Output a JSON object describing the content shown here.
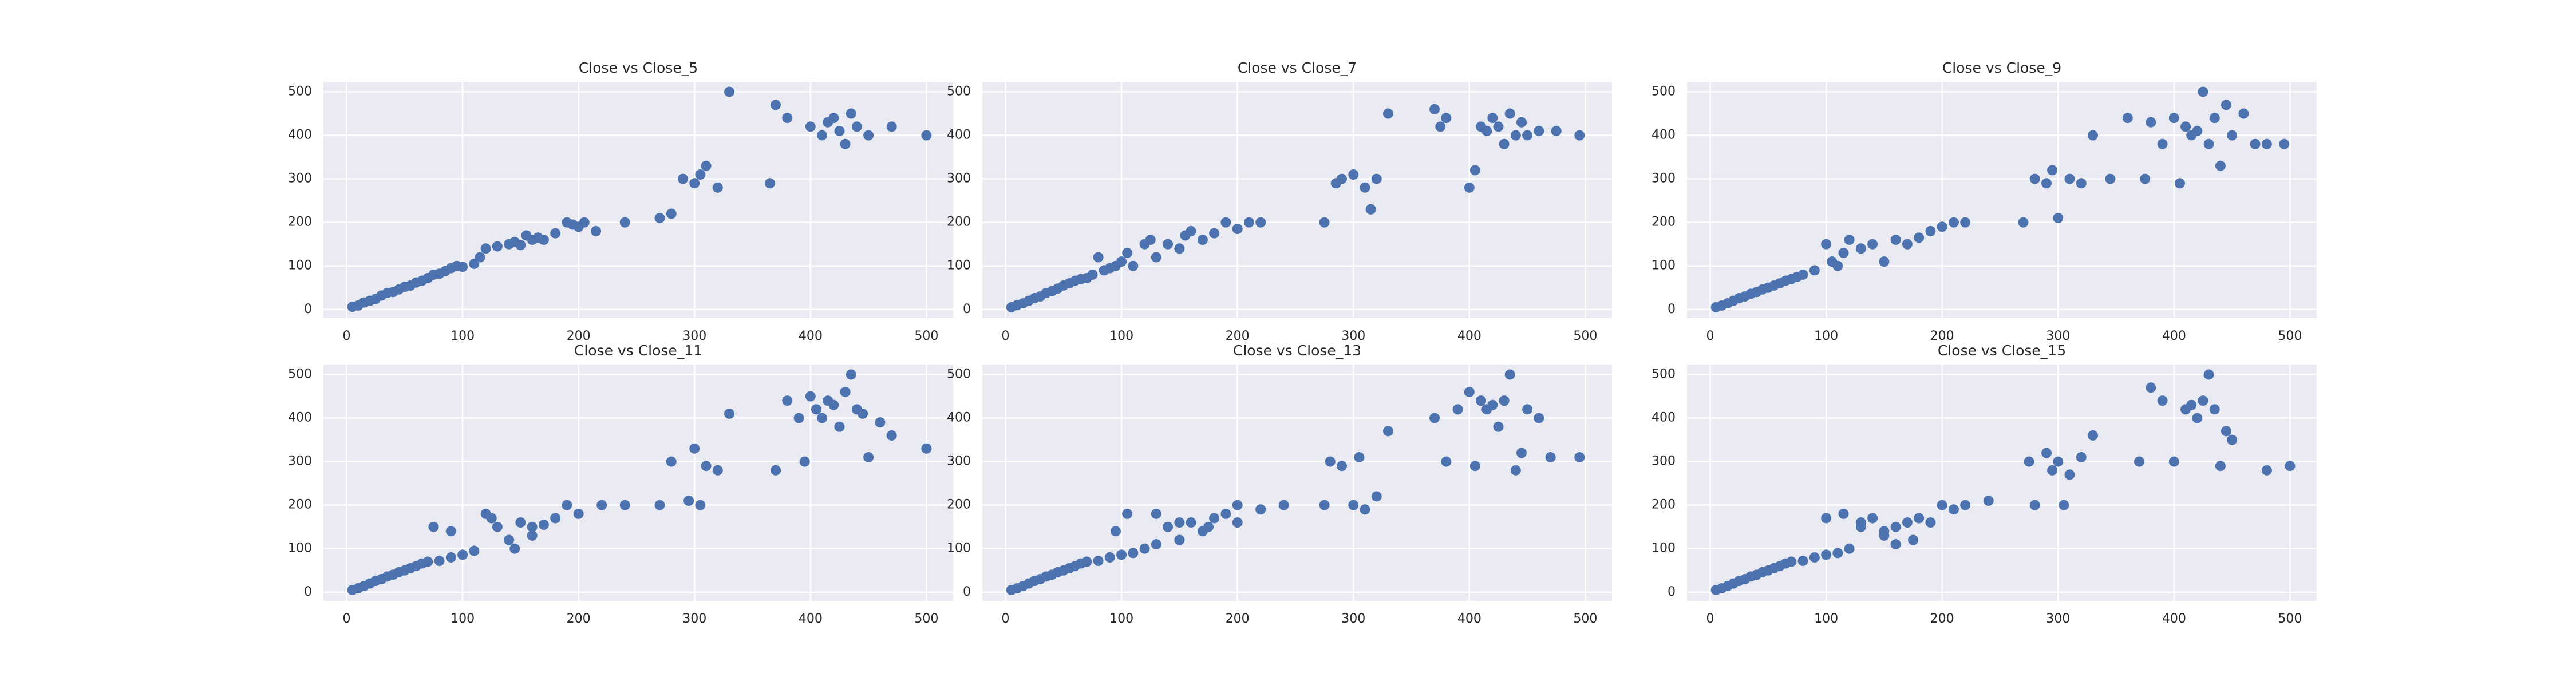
{
  "chart_data": [
    {
      "type": "scatter",
      "title": "Close vs Close_5",
      "color": "#4c72b0",
      "grid": true,
      "xlim": [
        -20,
        523
      ],
      "ylim": [
        -20,
        523
      ],
      "xticks": [
        0,
        100,
        200,
        300,
        400,
        500
      ],
      "yticks": [
        0,
        100,
        200,
        300,
        400,
        500
      ],
      "x": [
        5,
        10,
        15,
        20,
        25,
        30,
        35,
        40,
        45,
        50,
        55,
        60,
        65,
        70,
        75,
        80,
        85,
        90,
        95,
        100,
        110,
        115,
        120,
        130,
        140,
        145,
        150,
        155,
        160,
        165,
        170,
        180,
        190,
        195,
        200,
        205,
        215,
        240,
        270,
        280,
        290,
        300,
        305,
        310,
        320,
        330,
        365,
        370,
        380,
        400,
        410,
        415,
        420,
        425,
        430,
        435,
        440,
        450,
        470,
        500
      ],
      "y": [
        6,
        9,
        16,
        20,
        24,
        32,
        38,
        40,
        46,
        52,
        55,
        62,
        66,
        72,
        80,
        82,
        88,
        95,
        100,
        98,
        105,
        120,
        140,
        145,
        150,
        155,
        148,
        170,
        160,
        165,
        160,
        175,
        200,
        195,
        190,
        200,
        180,
        200,
        210,
        220,
        300,
        290,
        310,
        330,
        280,
        500,
        290,
        470,
        440,
        420,
        400,
        430,
        440,
        410,
        380,
        450,
        420,
        400,
        420,
        400
      ]
    },
    {
      "type": "scatter",
      "title": "Close vs Close_7",
      "color": "#4c72b0",
      "grid": true,
      "xlim": [
        -20,
        523
      ],
      "ylim": [
        -20,
        523
      ],
      "xticks": [
        0,
        100,
        200,
        300,
        400,
        500
      ],
      "yticks": [
        0,
        100,
        200,
        300,
        400,
        500
      ],
      "x": [
        5,
        10,
        15,
        20,
        25,
        30,
        35,
        40,
        45,
        50,
        55,
        60,
        65,
        70,
        75,
        80,
        85,
        90,
        95,
        100,
        105,
        110,
        120,
        125,
        130,
        140,
        150,
        155,
        160,
        170,
        180,
        190,
        200,
        210,
        220,
        275,
        285,
        290,
        300,
        310,
        315,
        320,
        330,
        370,
        375,
        380,
        400,
        405,
        410,
        415,
        420,
        425,
        430,
        435,
        440,
        445,
        450,
        460,
        475,
        495
      ],
      "y": [
        5,
        10,
        14,
        20,
        26,
        30,
        38,
        42,
        48,
        55,
        60,
        66,
        70,
        72,
        80,
        120,
        90,
        95,
        100,
        110,
        130,
        100,
        150,
        160,
        120,
        150,
        140,
        170,
        180,
        160,
        175,
        200,
        185,
        200,
        200,
        200,
        290,
        300,
        310,
        280,
        230,
        300,
        450,
        460,
        420,
        440,
        280,
        320,
        420,
        410,
        440,
        420,
        380,
        450,
        400,
        430,
        400,
        410,
        410,
        400
      ]
    },
    {
      "type": "scatter",
      "title": "Close vs Close_9",
      "color": "#4c72b0",
      "grid": true,
      "xlim": [
        -20,
        523
      ],
      "ylim": [
        -20,
        523
      ],
      "xticks": [
        0,
        100,
        200,
        300,
        400,
        500
      ],
      "yticks": [
        0,
        100,
        200,
        300,
        400,
        500
      ],
      "x": [
        5,
        10,
        15,
        20,
        25,
        30,
        35,
        40,
        45,
        50,
        55,
        60,
        65,
        70,
        75,
        80,
        90,
        100,
        105,
        110,
        115,
        120,
        130,
        140,
        150,
        160,
        170,
        180,
        190,
        200,
        210,
        220,
        270,
        280,
        290,
        295,
        300,
        310,
        320,
        330,
        360,
        375,
        380,
        390,
        400,
        405,
        410,
        415,
        420,
        425,
        430,
        435,
        440,
        445,
        450,
        460,
        470,
        480,
        495,
        345
      ],
      "y": [
        5,
        9,
        14,
        20,
        26,
        30,
        36,
        40,
        46,
        50,
        55,
        60,
        66,
        70,
        75,
        80,
        90,
        150,
        110,
        100,
        130,
        160,
        140,
        150,
        110,
        160,
        150,
        165,
        180,
        190,
        200,
        200,
        200,
        300,
        290,
        320,
        210,
        300,
        290,
        400,
        440,
        300,
        430,
        380,
        440,
        290,
        420,
        400,
        410,
        500,
        380,
        440,
        330,
        470,
        400,
        450,
        380,
        380,
        380,
        300
      ]
    },
    {
      "type": "scatter",
      "title": "Close vs Close_11",
      "color": "#4c72b0",
      "grid": true,
      "xlim": [
        -20,
        523
      ],
      "ylim": [
        -20,
        523
      ],
      "xticks": [
        0,
        100,
        200,
        300,
        400,
        500
      ],
      "yticks": [
        0,
        100,
        200,
        300,
        400,
        500
      ],
      "x": [
        5,
        10,
        15,
        20,
        25,
        30,
        35,
        40,
        45,
        50,
        55,
        60,
        65,
        70,
        80,
        90,
        100,
        110,
        120,
        130,
        140,
        145,
        150,
        160,
        170,
        180,
        190,
        200,
        220,
        240,
        270,
        280,
        295,
        300,
        305,
        310,
        320,
        330,
        370,
        380,
        390,
        395,
        400,
        405,
        410,
        415,
        420,
        425,
        430,
        435,
        440,
        445,
        450,
        460,
        470,
        500,
        75,
        90,
        125,
        160
      ],
      "y": [
        5,
        9,
        14,
        20,
        26,
        30,
        36,
        40,
        46,
        50,
        55,
        60,
        66,
        70,
        72,
        80,
        86,
        95,
        180,
        150,
        120,
        100,
        160,
        150,
        155,
        170,
        200,
        180,
        200,
        200,
        200,
        300,
        210,
        330,
        200,
        290,
        280,
        410,
        280,
        440,
        400,
        300,
        450,
        420,
        400,
        440,
        430,
        380,
        460,
        500,
        420,
        410,
        310,
        390,
        360,
        330,
        150,
        140,
        170,
        130
      ]
    },
    {
      "type": "scatter",
      "title": "Close vs Close_13",
      "color": "#4c72b0",
      "grid": true,
      "xlim": [
        -20,
        523
      ],
      "ylim": [
        -20,
        523
      ],
      "xticks": [
        0,
        100,
        200,
        300,
        400,
        500
      ],
      "yticks": [
        0,
        100,
        200,
        300,
        400,
        500
      ],
      "x": [
        5,
        10,
        15,
        20,
        25,
        30,
        35,
        40,
        45,
        50,
        55,
        60,
        65,
        70,
        80,
        90,
        100,
        110,
        120,
        130,
        140,
        150,
        160,
        170,
        180,
        190,
        200,
        220,
        240,
        275,
        280,
        290,
        300,
        305,
        310,
        320,
        330,
        370,
        380,
        390,
        400,
        405,
        410,
        415,
        420,
        425,
        430,
        435,
        440,
        445,
        450,
        460,
        470,
        495,
        95,
        105,
        130,
        150,
        175,
        200
      ],
      "y": [
        5,
        9,
        14,
        20,
        26,
        30,
        36,
        40,
        46,
        50,
        55,
        60,
        66,
        70,
        72,
        80,
        86,
        90,
        100,
        110,
        150,
        120,
        160,
        140,
        170,
        180,
        200,
        190,
        200,
        200,
        300,
        290,
        200,
        310,
        190,
        220,
        370,
        400,
        300,
        420,
        460,
        290,
        440,
        420,
        430,
        380,
        440,
        500,
        280,
        320,
        420,
        400,
        310,
        310,
        140,
        180,
        180,
        160,
        150,
        160
      ]
    },
    {
      "type": "scatter",
      "title": "Close vs Close_15",
      "color": "#4c72b0",
      "grid": true,
      "xlim": [
        -20,
        523
      ],
      "ylim": [
        -20,
        523
      ],
      "xticks": [
        0,
        100,
        200,
        300,
        400,
        500
      ],
      "yticks": [
        0,
        100,
        200,
        300,
        400,
        500
      ],
      "x": [
        5,
        10,
        15,
        20,
        25,
        30,
        35,
        40,
        45,
        50,
        55,
        60,
        65,
        70,
        80,
        90,
        100,
        110,
        120,
        130,
        140,
        150,
        160,
        170,
        180,
        190,
        200,
        210,
        220,
        240,
        275,
        280,
        290,
        295,
        300,
        305,
        310,
        320,
        330,
        370,
        380,
        390,
        400,
        410,
        415,
        420,
        425,
        430,
        435,
        440,
        445,
        450,
        480,
        500,
        100,
        115,
        130,
        150,
        160,
        175
      ],
      "y": [
        5,
        9,
        14,
        20,
        26,
        30,
        36,
        40,
        46,
        50,
        55,
        60,
        66,
        70,
        72,
        80,
        86,
        90,
        100,
        150,
        170,
        140,
        150,
        160,
        170,
        160,
        200,
        190,
        200,
        210,
        300,
        200,
        320,
        280,
        300,
        200,
        270,
        310,
        360,
        300,
        470,
        440,
        300,
        420,
        430,
        400,
        440,
        500,
        420,
        290,
        370,
        350,
        280,
        290,
        170,
        180,
        160,
        130,
        110,
        120
      ]
    }
  ]
}
